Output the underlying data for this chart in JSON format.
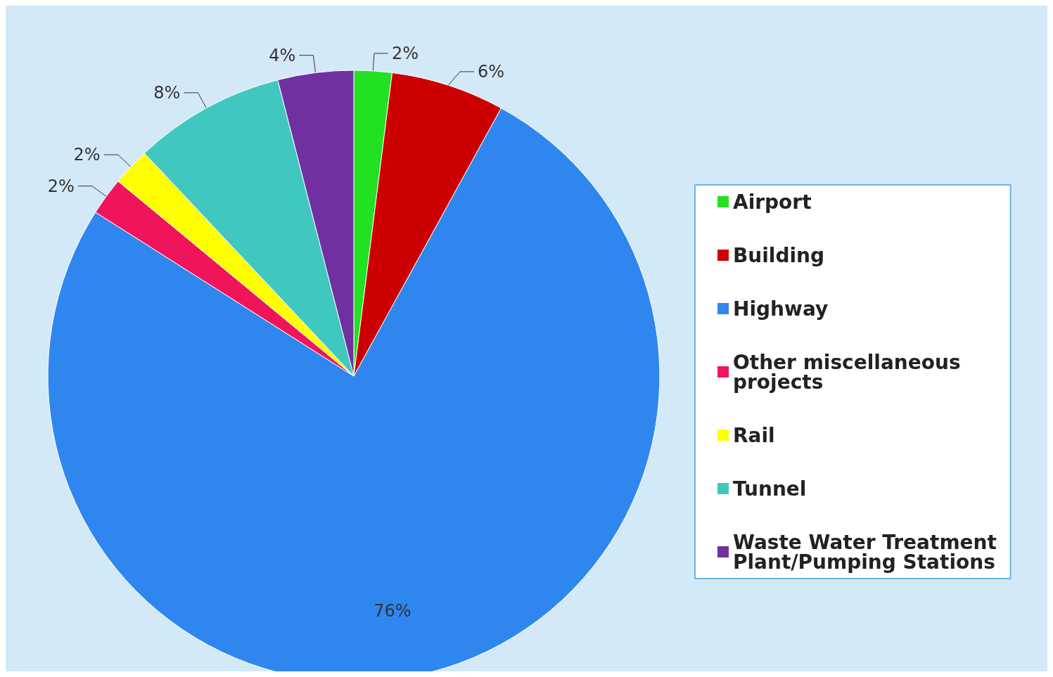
{
  "chart_data": {
    "type": "pie",
    "categories": [
      "Airport",
      "Building",
      "Highway",
      "Other miscellaneous projects",
      "Rail",
      "Tunnel",
      "Waste Water Treatment Plant/Pumping Stations"
    ],
    "values": [
      2,
      6,
      76,
      2,
      2,
      8,
      4
    ],
    "colors": [
      "#22e022",
      "#cc0000",
      "#2f86ef",
      "#f0145a",
      "#ffff00",
      "#40c8c0",
      "#7030a0"
    ],
    "value_labels": [
      "2%",
      "6%",
      "76%",
      "2%",
      "2%",
      "8%",
      "4%"
    ],
    "legend": "right"
  }
}
